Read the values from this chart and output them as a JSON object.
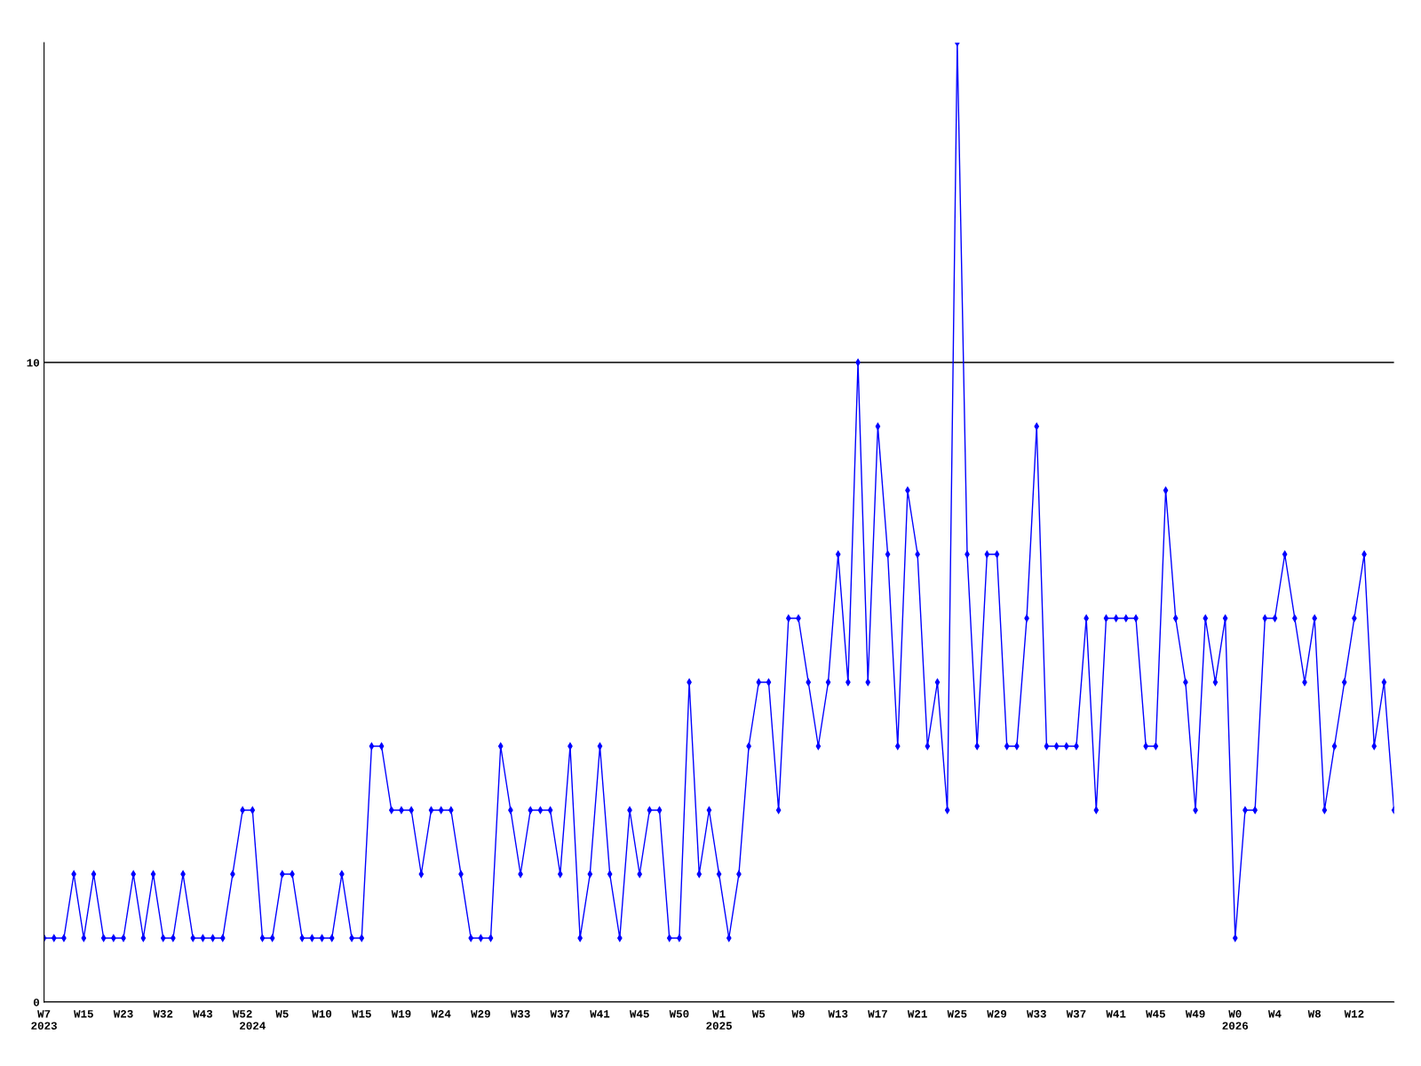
{
  "chart_data": {
    "type": "line",
    "categories": [
      "W7\n2023",
      null,
      null,
      null,
      "W15",
      null,
      null,
      null,
      "W23",
      null,
      null,
      null,
      "W32",
      null,
      null,
      null,
      "W43",
      null,
      null,
      null,
      "W52",
      "\n2024",
      null,
      null,
      "W5",
      null,
      null,
      null,
      "W10",
      null,
      null,
      null,
      "W15",
      null,
      null,
      null,
      "W19",
      null,
      null,
      null,
      "W24",
      null,
      null,
      null,
      "W29",
      null,
      null,
      null,
      "W33",
      null,
      null,
      null,
      "W37",
      null,
      null,
      null,
      "W41",
      null,
      null,
      null,
      "W45",
      null,
      null,
      null,
      "W50",
      null,
      null,
      null,
      "W1\n2025",
      null,
      null,
      null,
      "W5",
      null,
      null,
      null,
      "W9",
      null,
      null,
      null,
      "W13",
      null,
      null,
      null,
      "W17",
      null,
      null,
      null,
      "W21",
      null,
      null,
      null,
      "W25",
      null,
      null,
      null,
      "W29",
      null,
      null,
      null,
      "W33",
      null,
      null,
      null,
      "W37",
      null,
      null,
      null,
      "W41",
      null,
      null,
      null,
      "W45",
      null,
      null,
      null,
      "W49",
      null,
      null,
      null,
      "W0\n2026",
      null,
      null,
      null,
      "W4",
      null,
      null,
      null,
      "W8",
      null,
      null,
      null,
      "W12",
      null,
      null,
      null,
      null
    ],
    "series": [
      {
        "color": "#0000ff",
        "values": [
          1,
          1,
          1,
          2,
          1,
          2,
          1,
          1,
          1,
          2,
          1,
          2,
          1,
          1,
          2,
          1,
          1,
          1,
          1,
          2,
          3,
          3,
          1,
          1,
          2,
          2,
          1,
          1,
          1,
          1,
          2,
          1,
          1,
          4,
          4,
          3,
          3,
          3,
          2,
          3,
          3,
          3,
          2,
          1,
          1,
          1,
          4,
          3,
          2,
          3,
          3,
          3,
          2,
          4,
          1,
          2,
          4,
          2,
          1,
          3,
          2,
          3,
          3,
          1,
          1,
          5,
          2,
          3,
          2,
          1,
          2,
          4,
          5,
          5,
          3,
          6,
          6,
          5,
          4,
          5,
          7,
          5,
          10,
          5,
          9,
          7,
          4,
          8,
          7,
          4,
          5,
          3,
          15,
          7,
          4,
          7,
          7,
          4,
          4,
          6,
          9,
          4,
          4,
          4,
          4,
          6,
          3,
          6,
          6,
          6,
          6,
          4,
          4,
          8,
          6,
          5,
          3,
          6,
          5,
          6,
          1,
          3,
          3,
          6,
          6,
          7,
          6,
          5,
          6,
          3,
          4,
          5,
          6,
          7,
          4,
          5,
          3
        ]
      }
    ],
    "ylim": [
      0,
      15
    ],
    "yticks": [
      0,
      10
    ],
    "grid": "y",
    "marker": "diamond",
    "line_style": "solid"
  }
}
